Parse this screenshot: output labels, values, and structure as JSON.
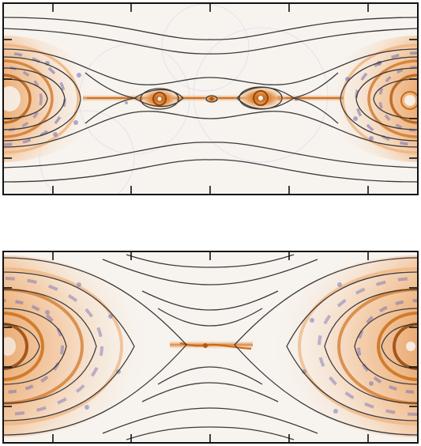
{
  "figure": {
    "panels": [
      {
        "id": "top",
        "label": ""
      },
      {
        "id": "bottom",
        "label": ""
      }
    ]
  },
  "colors": {
    "frame": "#111111",
    "field_line": "#3a3a3a",
    "background_field": "#f7f3ee",
    "positive": "#cc6a12",
    "positive_light": "#f0b27a",
    "negative": "#6e6bb5",
    "negative_light": "#c9c7ec"
  }
}
